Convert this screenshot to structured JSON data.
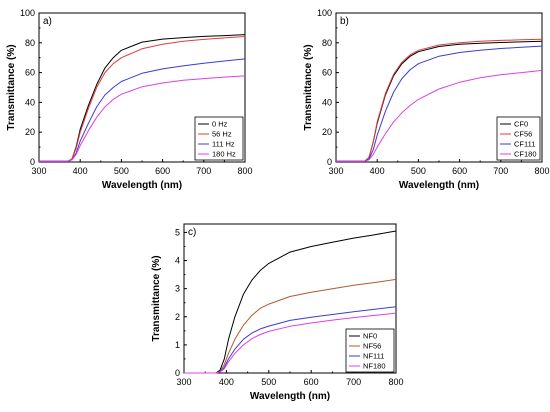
{
  "chart_data": [
    {
      "panel": "a)",
      "type": "line",
      "xlabel": "Wavelength (nm)",
      "ylabel": "Transmittance (%)",
      "xlim": [
        300,
        800
      ],
      "ylim": [
        0,
        100
      ],
      "xticks": [
        300,
        400,
        500,
        600,
        700,
        800
      ],
      "yticks": [
        0,
        20,
        40,
        60,
        80,
        100
      ],
      "legend": "bottom-right",
      "grid": false,
      "series": [
        {
          "name": "0 Hz",
          "color": "#000000",
          "x": [
            300,
            370,
            380,
            390,
            400,
            420,
            440,
            460,
            480,
            500,
            550,
            600,
            650,
            700,
            750,
            800
          ],
          "y": [
            0.5,
            0.5,
            2,
            10,
            22,
            38,
            52,
            63,
            70,
            75,
            80.5,
            82.5,
            83.5,
            84.3,
            84.8,
            85.5
          ]
        },
        {
          "name": "56 Hz",
          "color": "#e03c3c",
          "x": [
            300,
            370,
            380,
            390,
            400,
            420,
            440,
            460,
            480,
            500,
            550,
            600,
            650,
            700,
            750,
            800
          ],
          "y": [
            0.5,
            0.5,
            2,
            9,
            20,
            36,
            50,
            60,
            66,
            70,
            76,
            79,
            81,
            82.3,
            83.3,
            84.2
          ]
        },
        {
          "name": "111 Hz",
          "color": "#3b3bd6",
          "x": [
            300,
            370,
            380,
            390,
            400,
            420,
            440,
            460,
            480,
            500,
            550,
            600,
            650,
            700,
            750,
            800
          ],
          "y": [
            0.5,
            0.5,
            1.5,
            6,
            14,
            26,
            37,
            45,
            50,
            54,
            59.5,
            62.5,
            64.5,
            66.3,
            67.8,
            69.2
          ]
        },
        {
          "name": "180 Hz",
          "color": "#e040e0",
          "x": [
            300,
            370,
            380,
            390,
            400,
            420,
            440,
            460,
            480,
            500,
            550,
            600,
            650,
            700,
            750,
            800
          ],
          "y": [
            0.5,
            0.5,
            1.5,
            5,
            11,
            21,
            30,
            37,
            42,
            45.5,
            50.5,
            53,
            54.8,
            56,
            57,
            57.8
          ]
        }
      ]
    },
    {
      "panel": "b)",
      "type": "line",
      "xlabel": "Wavelength (nm)",
      "ylabel": "Transmittance (%)",
      "xlim": [
        300,
        800
      ],
      "ylim": [
        0,
        100
      ],
      "xticks": [
        300,
        400,
        500,
        600,
        700,
        800
      ],
      "yticks": [
        0,
        20,
        40,
        60,
        80,
        100
      ],
      "legend": "bottom-right",
      "grid": false,
      "series": [
        {
          "name": "CF0",
          "color": "#000000",
          "x": [
            300,
            370,
            380,
            390,
            400,
            420,
            440,
            460,
            480,
            500,
            550,
            600,
            650,
            700,
            750,
            800
          ],
          "y": [
            0.5,
            0.5,
            3,
            13,
            26,
            45,
            58,
            66,
            71,
            74,
            77.5,
            79,
            79.7,
            80.2,
            80.6,
            81
          ]
        },
        {
          "name": "CF56",
          "color": "#e03c3c",
          "x": [
            300,
            370,
            380,
            390,
            400,
            420,
            440,
            460,
            480,
            500,
            550,
            600,
            650,
            700,
            750,
            800
          ],
          "y": [
            0.5,
            0.5,
            3,
            13,
            27,
            46,
            59,
            67,
            72,
            75,
            78.5,
            80,
            81,
            81.6,
            82,
            82.4
          ]
        },
        {
          "name": "CF111",
          "color": "#3b3bd6",
          "x": [
            300,
            370,
            380,
            390,
            400,
            420,
            440,
            460,
            480,
            500,
            550,
            600,
            650,
            700,
            750,
            800
          ],
          "y": [
            0.5,
            0.5,
            2,
            8,
            18,
            34,
            47,
            56,
            62,
            66,
            71,
            73.5,
            75,
            76.2,
            77,
            77.8
          ]
        },
        {
          "name": "CF180",
          "color": "#e040e0",
          "x": [
            300,
            370,
            380,
            390,
            400,
            420,
            440,
            460,
            480,
            500,
            550,
            600,
            650,
            700,
            750,
            800
          ],
          "y": [
            0.5,
            0.5,
            1.5,
            5,
            10,
            19,
            27,
            33,
            38,
            42,
            49,
            53.5,
            56.5,
            58.5,
            60,
            61.5
          ]
        }
      ]
    },
    {
      "panel": "c)",
      "type": "line",
      "xlabel": "Wavelength (nm)",
      "ylabel": "Transmittance (%)",
      "xlim": [
        300,
        800
      ],
      "ylim": [
        0,
        5.3
      ],
      "xticks": [
        300,
        400,
        500,
        600,
        700,
        800
      ],
      "yticks": [
        0,
        1,
        2,
        3,
        4,
        5
      ],
      "legend": "bottom-right",
      "grid": false,
      "series": [
        {
          "name": "NF0",
          "color": "#000000",
          "x": [
            300,
            375,
            385,
            395,
            405,
            420,
            440,
            460,
            480,
            500,
            550,
            600,
            650,
            700,
            750,
            800
          ],
          "y": [
            0,
            0,
            0.1,
            0.5,
            1.2,
            2.0,
            2.8,
            3.3,
            3.65,
            3.9,
            4.3,
            4.5,
            4.65,
            4.8,
            4.92,
            5.05
          ]
        },
        {
          "name": "NF56",
          "color": "#b05a30",
          "x": [
            300,
            375,
            385,
            395,
            405,
            420,
            440,
            460,
            480,
            500,
            550,
            600,
            650,
            700,
            750,
            800
          ],
          "y": [
            0,
            0,
            0.05,
            0.3,
            0.7,
            1.2,
            1.7,
            2.05,
            2.3,
            2.45,
            2.72,
            2.87,
            3.0,
            3.12,
            3.22,
            3.33
          ]
        },
        {
          "name": "NF111",
          "color": "#3b3bd6",
          "x": [
            300,
            375,
            385,
            395,
            405,
            420,
            440,
            460,
            480,
            500,
            550,
            600,
            650,
            700,
            750,
            800
          ],
          "y": [
            0,
            0,
            0.05,
            0.2,
            0.5,
            0.85,
            1.2,
            1.42,
            1.57,
            1.67,
            1.87,
            1.98,
            2.08,
            2.18,
            2.27,
            2.36
          ]
        },
        {
          "name": "NF180",
          "color": "#e040e0",
          "x": [
            300,
            375,
            385,
            395,
            405,
            420,
            440,
            460,
            480,
            500,
            550,
            600,
            650,
            700,
            750,
            800
          ],
          "y": [
            0,
            0,
            0.04,
            0.15,
            0.4,
            0.7,
            1.0,
            1.22,
            1.37,
            1.48,
            1.66,
            1.78,
            1.88,
            1.97,
            2.05,
            2.13
          ]
        }
      ]
    }
  ]
}
